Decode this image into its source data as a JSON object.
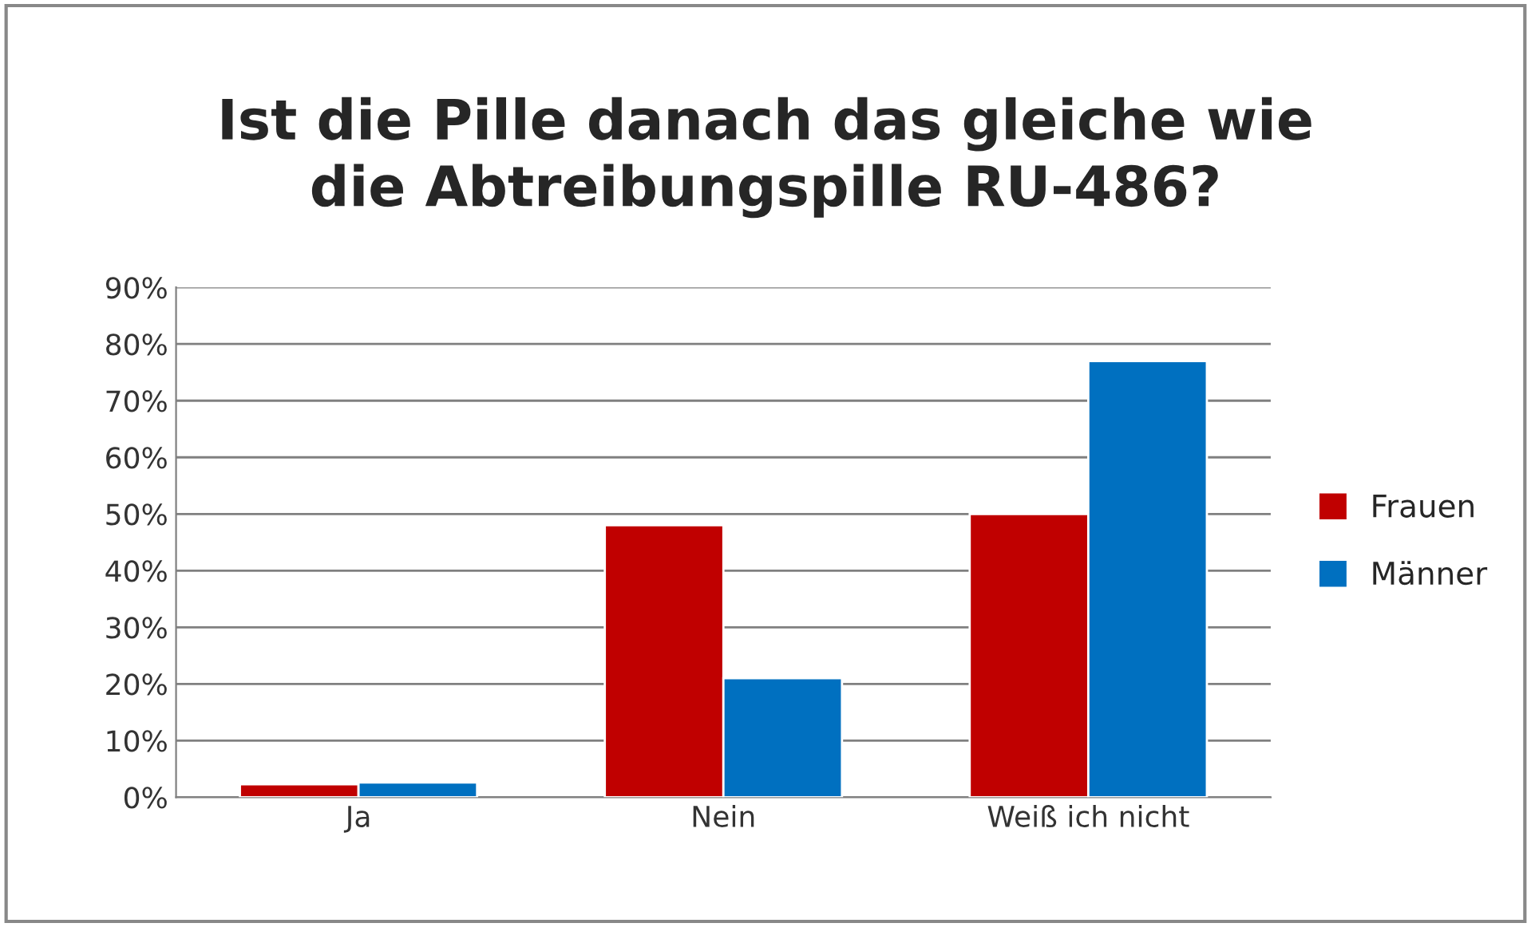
{
  "chart_data": {
    "type": "bar",
    "title": "Ist die Pille danach das gleiche wie\ndie Abtreibungspille RU-486?",
    "categories": [
      "Ja",
      "Nein",
      "Weiß ich nicht"
    ],
    "series": [
      {
        "name": "Frauen",
        "color": "#c00000",
        "values": [
          2.3,
          48,
          50
        ]
      },
      {
        "name": "Männer",
        "color": "#0070c0",
        "values": [
          2.6,
          21,
          77
        ]
      }
    ],
    "ylim": [
      0,
      90
    ],
    "yticks": [
      {
        "value": 0,
        "label": "0%"
      },
      {
        "value": 10,
        "label": "10%"
      },
      {
        "value": 20,
        "label": "20%"
      },
      {
        "value": 30,
        "label": "30%"
      },
      {
        "value": 40,
        "label": "40%"
      },
      {
        "value": 50,
        "label": "50%"
      },
      {
        "value": 60,
        "label": "60%"
      },
      {
        "value": 70,
        "label": "70%"
      },
      {
        "value": 80,
        "label": "80%"
      },
      {
        "value": 90,
        "label": "90%"
      }
    ],
    "grid": "y",
    "legend": "right"
  }
}
